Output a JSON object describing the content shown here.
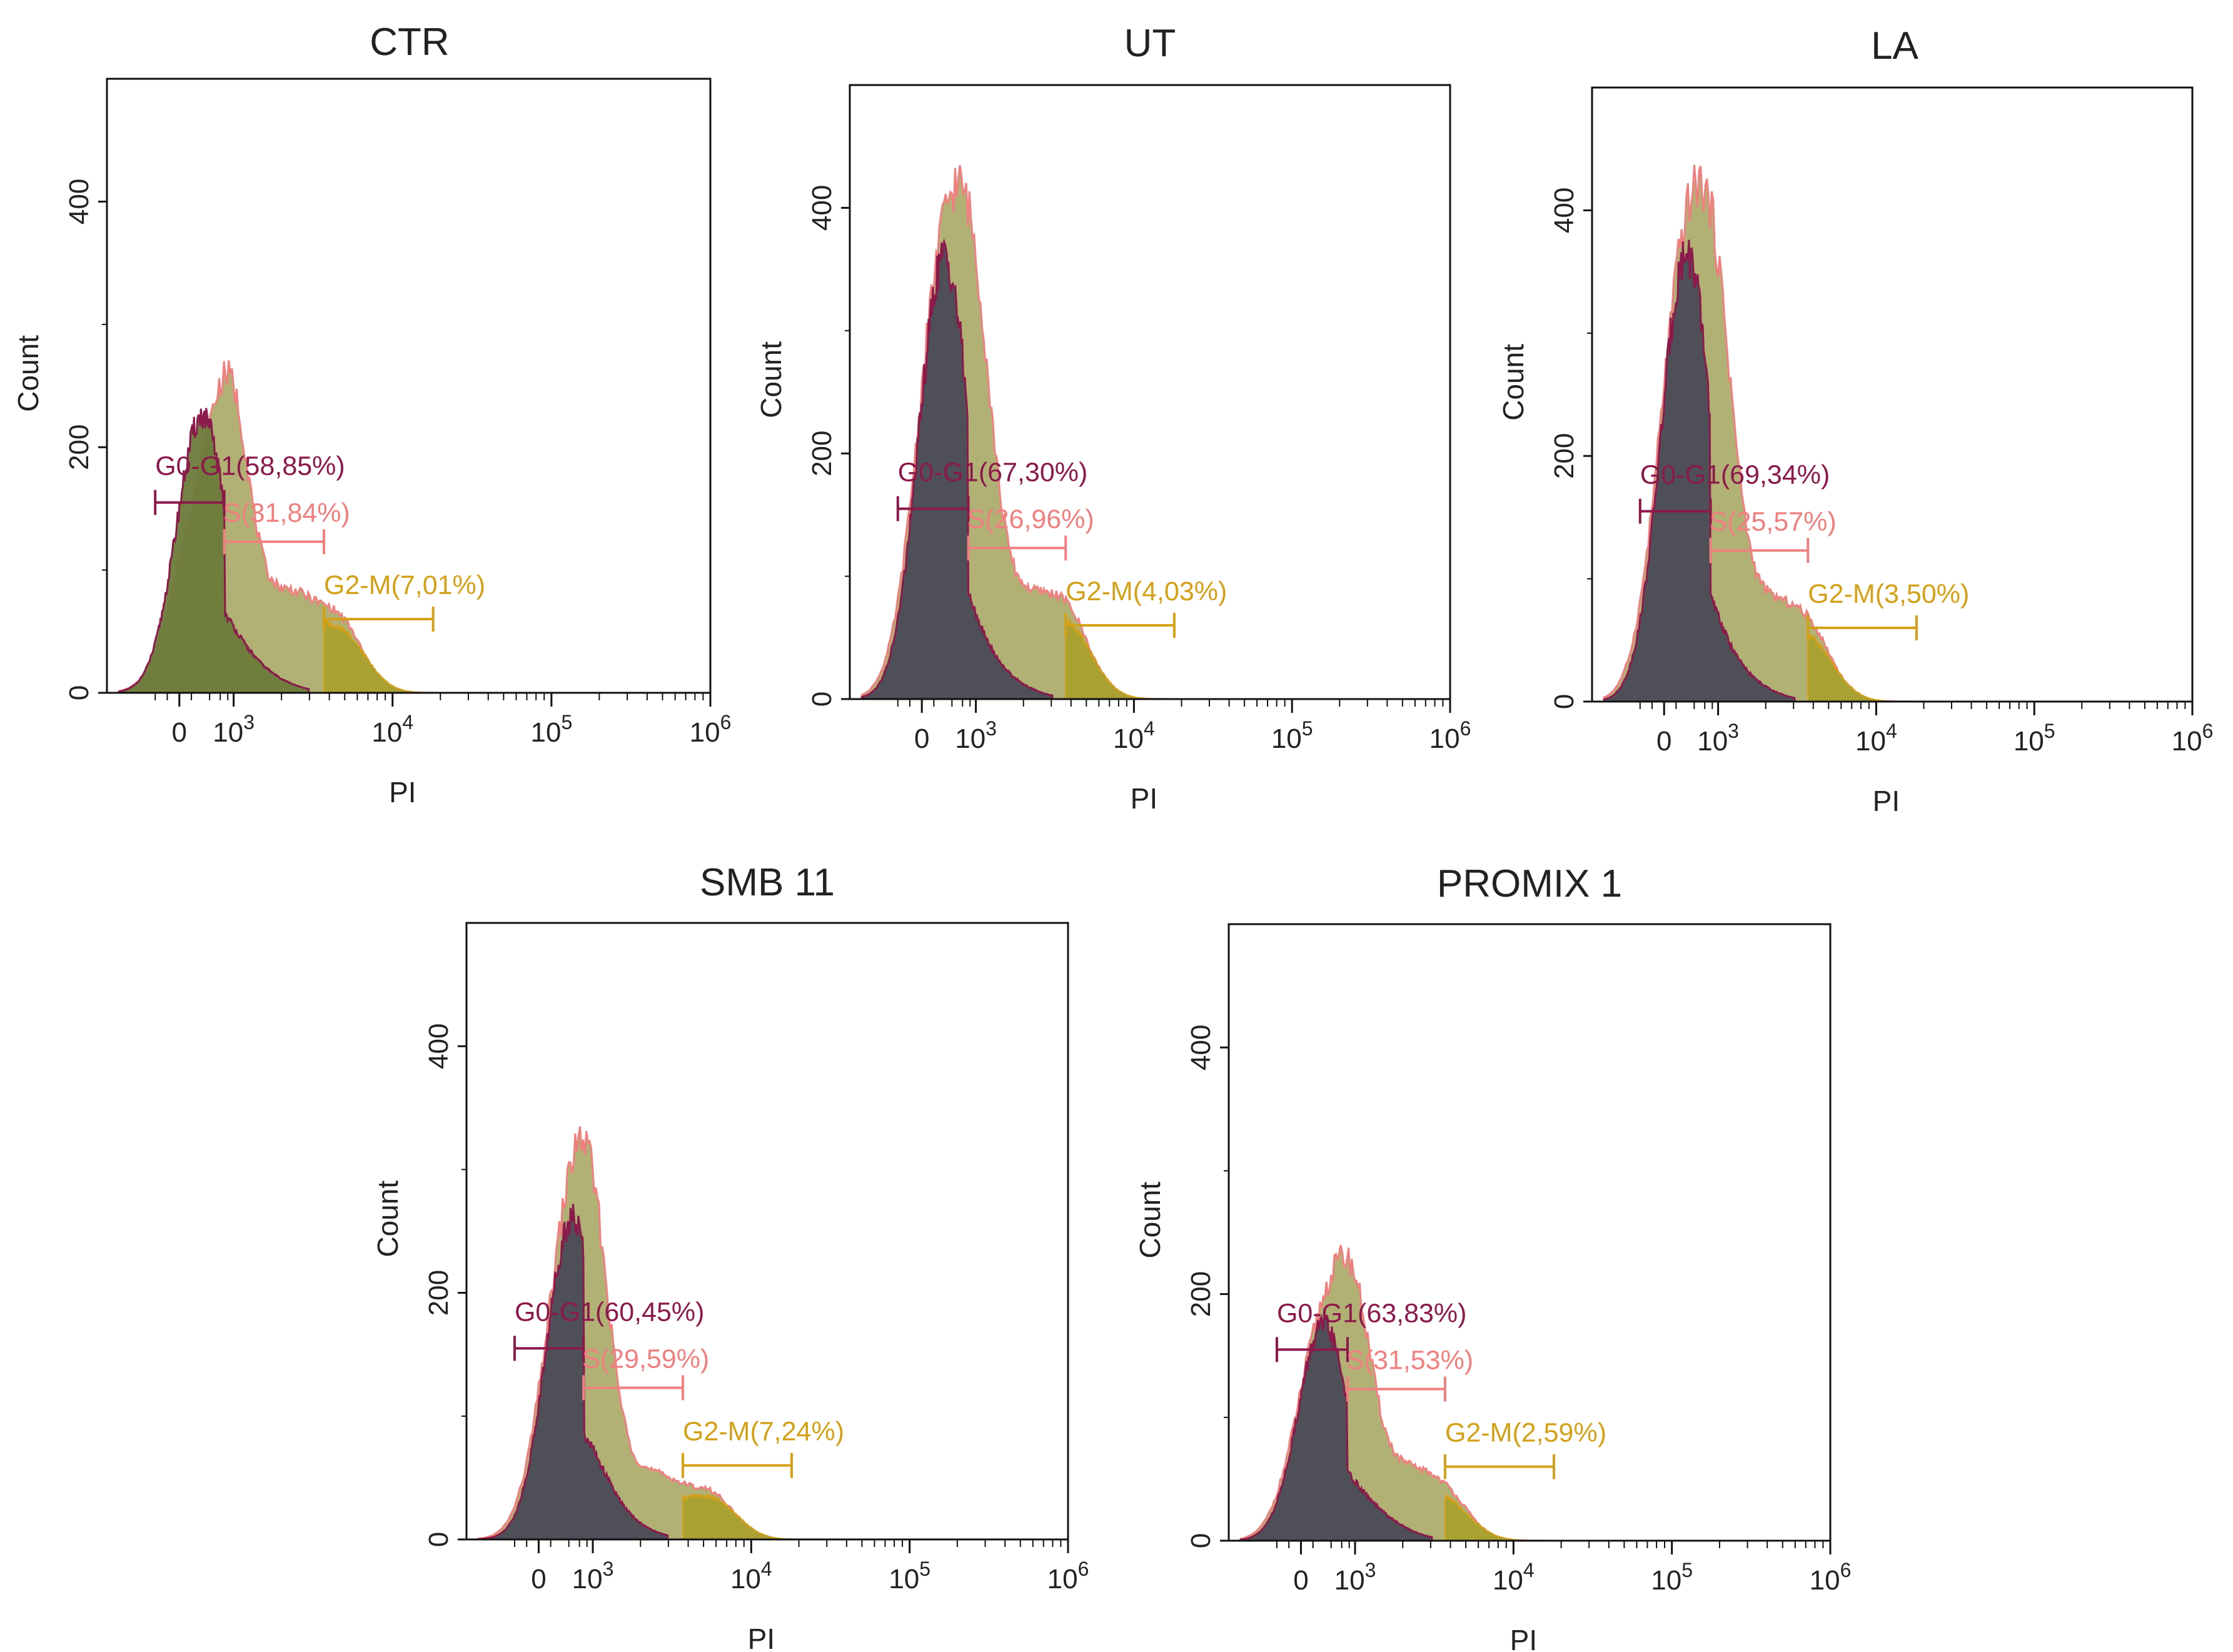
{
  "chart_data": [
    {
      "type": "histogram",
      "title": "CTR",
      "xlabel": "PI",
      "ylabel": "Count",
      "x_ticks": [
        "0",
        "10^3",
        "10^4",
        "10^5",
        "10^6"
      ],
      "y_ticks": [
        "0",
        "200",
        "400"
      ],
      "ylim": [
        0,
        500
      ],
      "gates": [
        {
          "name": "G0-G1",
          "percent": "58,85%",
          "label": "G0-G1(58,85%)",
          "range": [
            -400,
            700
          ]
        },
        {
          "name": "S",
          "percent": "31,84%",
          "label": "S(31,84%)",
          "range": [
            700,
            3700
          ]
        },
        {
          "name": "G2-M",
          "percent": "7,01%",
          "label": "G2-M(7,01%)",
          "range": [
            3700,
            18000
          ]
        }
      ],
      "peaks": {
        "g1_x": 300,
        "g1_height": 225,
        "g2_x": 5000,
        "g2_height": 35
      },
      "overlay": {
        "g1_height": 150,
        "s_x": 950,
        "s_height": 148
      }
    },
    {
      "type": "histogram",
      "title": "UT",
      "xlabel": "PI",
      "ylabel": "Count",
      "x_ticks": [
        "0",
        "10^3",
        "10^4",
        "10^5",
        "10^6"
      ],
      "y_ticks": [
        "0",
        "200",
        "400"
      ],
      "ylim": [
        0,
        500
      ],
      "gates": [
        {
          "name": "G0-G1",
          "percent": "67,30%",
          "label": "G0-G1(67,30%)",
          "range": [
            -400,
            750
          ]
        },
        {
          "name": "S",
          "percent": "26,96%",
          "label": "S(26,96%)",
          "range": [
            750,
            3700
          ]
        },
        {
          "name": "G2-M",
          "percent": "4,03%",
          "label": "G2-M(4,03%)",
          "range": [
            3700,
            18000
          ]
        }
      ],
      "peaks": {
        "g1_x": 300,
        "g1_height": 360,
        "g2_x": 4000,
        "g2_height": 40
      },
      "overlay": {
        "g1_height": 355,
        "s_x": 1000,
        "s_height": 148
      }
    },
    {
      "type": "histogram",
      "title": "LA",
      "xlabel": "PI",
      "ylabel": "Count",
      "x_ticks": [
        "0",
        "10^3",
        "10^4",
        "10^5",
        "10^6"
      ],
      "y_ticks": [
        "0",
        "200",
        "400"
      ],
      "ylim": [
        0,
        500
      ],
      "gates": [
        {
          "name": "G0-G1",
          "percent": "69,34%",
          "label": "G0-G1(69,34%)",
          "range": [
            -400,
            750
          ]
        },
        {
          "name": "S",
          "percent": "25,57%",
          "label": "S(25,57%)",
          "range": [
            750,
            3700
          ]
        },
        {
          "name": "G2-M",
          "percent": "3,50%",
          "label": "G2-M(3,50%)",
          "range": [
            3700,
            18000
          ]
        }
      ],
      "peaks": {
        "g1_x": 300,
        "g1_height": 365,
        "g2_x": 4000,
        "g2_height": 30
      },
      "overlay": {
        "g1_height": 360,
        "s_x": 1000,
        "s_height": 145
      }
    },
    {
      "type": "histogram",
      "title": "SMB 11",
      "xlabel": "PI",
      "ylabel": "Count",
      "x_ticks": [
        "0",
        "10^3",
        "10^4",
        "10^5",
        "10^6"
      ],
      "y_ticks": [
        "0",
        "200",
        "400"
      ],
      "ylim": [
        0,
        500
      ],
      "gates": [
        {
          "name": "G0-G1",
          "percent": "60,45%",
          "label": "G0-G1(60,45%)",
          "range": [
            -400,
            700
          ]
        },
        {
          "name": "S",
          "percent": "29,59%",
          "label": "S(29,59%)",
          "range": [
            700,
            3700
          ]
        },
        {
          "name": "G2-M",
          "percent": "7,24%",
          "label": "G2-M(7,24%)",
          "range": [
            3700,
            18000
          ]
        }
      ],
      "peaks": {
        "g1_x": 450,
        "g1_height": 260,
        "g2_x": 6000,
        "g2_height": 25
      },
      "overlay": {
        "g1_height": 255,
        "s_x": 1000,
        "s_height": 95
      }
    },
    {
      "type": "histogram",
      "title": "PROMIX 1",
      "xlabel": "PI",
      "ylabel": "Count",
      "x_ticks": [
        "0",
        "10^3",
        "10^4",
        "10^5",
        "10^6"
      ],
      "y_ticks": [
        "0",
        "200",
        "400"
      ],
      "ylim": [
        0,
        500
      ],
      "gates": [
        {
          "name": "G0-G1",
          "percent": "63,83%",
          "label": "G0-G1(63,83%)",
          "range": [
            -400,
            750
          ]
        },
        {
          "name": "S",
          "percent": "31,53%",
          "label": "S(31,53%)",
          "range": [
            750,
            3700
          ]
        },
        {
          "name": "G2-M",
          "percent": "2,59%",
          "label": "G2-M(2,59%)",
          "range": [
            3700,
            18000
          ]
        }
      ],
      "peaks": {
        "g1_x": 300,
        "g1_height": 175,
        "g2_x": 4000,
        "g2_height": 18
      },
      "overlay": {
        "g1_height": 170,
        "s_x": 1000,
        "s_height": 105
      }
    }
  ],
  "colors": {
    "axis": "#111111",
    "text": "#222222",
    "g1_gate": "#8b1a4a",
    "s_gate": "#f08080",
    "g2_gate": "#d4a017",
    "dark_fill": "#4a4a55",
    "olive_fill": "#6b7a3a",
    "khaki_fill": "#a3a35e",
    "rose_fill": "#b38a80",
    "yellow_fill": "#a8a02a"
  }
}
